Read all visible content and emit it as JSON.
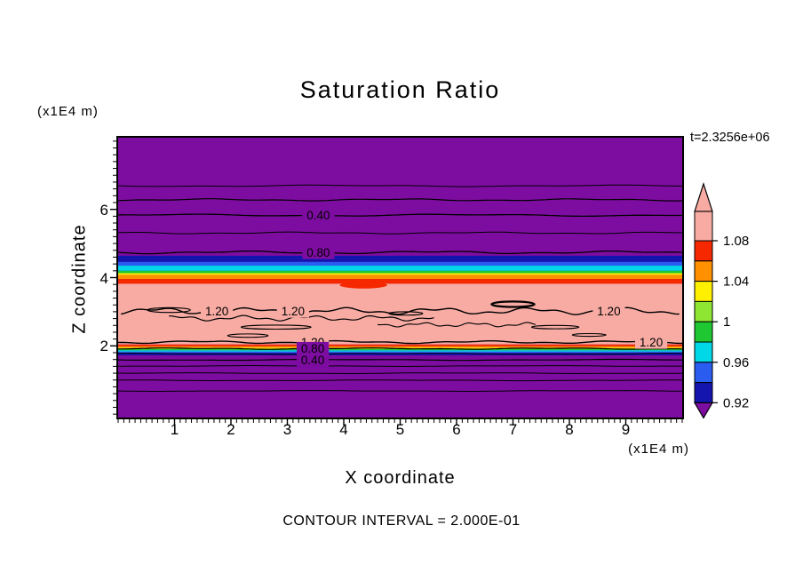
{
  "chart_data": {
    "type": "heatmap",
    "subtype": "filled contour plot",
    "title": "Saturation Ratio",
    "time_label": "t=2.3256e+06",
    "xlabel": "X coordinate",
    "ylabel": "Z coordinate",
    "x_unit": "(x1E4 m)",
    "y_unit": "(x1E4 m)",
    "contour_interval_label": "CONTOUR INTERVAL = 2.000E-01",
    "contour_interval": 0.2,
    "x_range": [
      0,
      10
    ],
    "z_range": [
      -0.1,
      8.1
    ],
    "x_major_ticks": [
      1,
      2,
      3,
      4,
      5,
      6,
      7,
      8,
      9
    ],
    "x_minor_step": 0.1,
    "y_major_ticks": [
      2,
      4,
      6
    ],
    "y_minor_step": 0.2,
    "grid": false,
    "colors": {
      "purple": "#7D0DA0",
      "darkblue": "#1414AF",
      "blue": "#2A5CEF",
      "cyan": "#00D8E8",
      "green": "#1FC832",
      "lightgreen": "#8FE632",
      "yellow": "#FFF000",
      "orange": "#FF9100",
      "red": "#F52800",
      "pink": "#F7ABA3"
    },
    "bands": [
      {
        "z_top": 8.1,
        "z_bottom": 4.64,
        "color": "purple"
      },
      {
        "z_top": 4.64,
        "z_bottom": 4.46,
        "color": "darkblue"
      },
      {
        "z_top": 4.46,
        "z_bottom": 4.35,
        "color": "blue"
      },
      {
        "z_top": 4.35,
        "z_bottom": 4.2,
        "color": "cyan"
      },
      {
        "z_top": 4.2,
        "z_bottom": 4.13,
        "color": "green"
      },
      {
        "z_top": 4.13,
        "z_bottom": 4.08,
        "color": "yellow"
      },
      {
        "z_top": 4.08,
        "z_bottom": 3.96,
        "color": "orange"
      },
      {
        "z_top": 3.96,
        "z_bottom": 3.82,
        "color": "red"
      },
      {
        "z_top": 3.82,
        "z_bottom": 2.04,
        "color": "pink"
      },
      {
        "z_top": 2.04,
        "z_bottom": 1.99,
        "color": "red"
      },
      {
        "z_top": 1.99,
        "z_bottom": 1.95,
        "color": "orange"
      },
      {
        "z_top": 1.95,
        "z_bottom": 1.91,
        "color": "yellow"
      },
      {
        "z_top": 1.91,
        "z_bottom": 1.87,
        "color": "green"
      },
      {
        "z_top": 1.87,
        "z_bottom": 1.83,
        "color": "cyan"
      },
      {
        "z_top": 1.83,
        "z_bottom": 1.79,
        "color": "blue"
      },
      {
        "z_top": 1.79,
        "z_bottom": 1.72,
        "color": "darkblue"
      },
      {
        "z_top": 1.72,
        "z_bottom": -0.1,
        "color": "purple"
      }
    ],
    "filled_blobs": [
      {
        "color": "red",
        "x": 4.35,
        "z": 3.78,
        "rx": 0.42,
        "rz": 0.1
      }
    ],
    "contour_lines": [
      {
        "z": 6.69,
        "x_from": 0,
        "x_to": 10,
        "amp": 0.6,
        "waves": 2,
        "width": 1,
        "labels": []
      },
      {
        "z": 6.28,
        "x_from": 0,
        "x_to": 10,
        "amp": 0.8,
        "waves": 3,
        "width": 1.2,
        "labels": []
      },
      {
        "z": 5.83,
        "x_from": 0,
        "x_to": 10,
        "amp": 0.8,
        "waves": 2,
        "width": 1.3,
        "labels": [
          {
            "text": "0.40",
            "x": 3.55,
            "bg": "purple"
          }
        ]
      },
      {
        "z": 5.31,
        "x_from": 0,
        "x_to": 10,
        "amp": 0.7,
        "waves": 3,
        "width": 1,
        "labels": []
      },
      {
        "z": 4.74,
        "x_from": 0,
        "x_to": 10,
        "amp": 1.0,
        "waves": 3,
        "width": 1.3,
        "labels": [
          {
            "text": "0.80",
            "x": 3.55,
            "bg": "purple"
          }
        ]
      },
      {
        "z": 3.02,
        "x_from": 0.05,
        "x_to": 9.95,
        "amp": 2.6,
        "waves": 6,
        "width": 1.4,
        "labels": [
          {
            "text": "1.20",
            "x": 1.75,
            "bg": "pink"
          },
          {
            "text": "1.20",
            "x": 3.1,
            "bg": "pink"
          },
          {
            "text": "1.20",
            "x": 8.7,
            "bg": "pink"
          }
        ]
      },
      {
        "z": 2.81,
        "x_from": 0.9,
        "x_to": 5.6,
        "amp": 2.0,
        "waves": 4,
        "width": 1.2,
        "labels": []
      },
      {
        "z": 2.62,
        "x_from": 4.6,
        "x_to": 7.4,
        "amp": 1.6,
        "waves": 3,
        "width": 1.1,
        "labels": []
      },
      {
        "z": 2.11,
        "x_from": 0,
        "x_to": 10,
        "amp": 1.0,
        "waves": 4,
        "width": 1.4,
        "labels": [
          {
            "text": "1.20",
            "x": 3.45,
            "bg": "pink"
          },
          {
            "text": "1.20",
            "x": 9.45,
            "bg": "pink"
          }
        ]
      },
      {
        "z": 1.92,
        "x_from": 0,
        "x_to": 10,
        "amp": 0.5,
        "waves": 3,
        "width": 1.2,
        "labels": [
          {
            "text": "0.80",
            "x": 3.45,
            "bg": "purple"
          }
        ]
      },
      {
        "z": 1.77,
        "x_from": 0,
        "x_to": 10,
        "amp": 0.4,
        "waves": 2,
        "width": 1,
        "labels": []
      },
      {
        "z": 1.59,
        "x_from": 0,
        "x_to": 10,
        "amp": 0.4,
        "waves": 2,
        "width": 1.2,
        "labels": [
          {
            "text": "0.40",
            "x": 3.45,
            "bg": "purple"
          }
        ]
      },
      {
        "z": 1.41,
        "x_from": 0,
        "x_to": 10,
        "amp": 0.3,
        "waves": 2,
        "width": 1,
        "labels": []
      },
      {
        "z": 1.2,
        "x_from": 0,
        "x_to": 10,
        "amp": 0.3,
        "waves": 2,
        "width": 1,
        "labels": []
      },
      {
        "z": 0.99,
        "x_from": 0,
        "x_to": 10,
        "amp": 0.3,
        "waves": 2,
        "width": 1,
        "labels": []
      },
      {
        "z": 0.68,
        "x_from": 0,
        "x_to": 10,
        "amp": 0.3,
        "waves": 2,
        "width": 1,
        "labels": []
      }
    ],
    "closed_contours": [
      {
        "x": 0.9,
        "z": 3.05,
        "rx": 0.38,
        "rz": 0.07
      },
      {
        "x": 2.8,
        "z": 2.55,
        "rx": 0.62,
        "rz": 0.06
      },
      {
        "x": 2.3,
        "z": 2.3,
        "rx": 0.36,
        "rz": 0.05
      },
      {
        "x": 5.1,
        "z": 2.95,
        "rx": 0.3,
        "rz": 0.05
      },
      {
        "x": 7.0,
        "z": 3.22,
        "rx": 0.38,
        "rz": 0.08,
        "width": 2.2
      },
      {
        "x": 7.75,
        "z": 2.55,
        "rx": 0.42,
        "rz": 0.05
      },
      {
        "x": 8.35,
        "z": 2.32,
        "rx": 0.3,
        "rz": 0.04
      }
    ],
    "colorbar": {
      "values_top_to_bottom": [
        "1.08",
        "1.04",
        "1",
        "0.96",
        "0.92"
      ],
      "segments": [
        {
          "color": "pink",
          "label": "1.08"
        },
        {
          "color": "red",
          "label": null
        },
        {
          "color": "orange",
          "label": "1.04"
        },
        {
          "color": "yellow",
          "label": null
        },
        {
          "color": "lightgreen",
          "label": "1"
        },
        {
          "color": "green",
          "label": null
        },
        {
          "color": "cyan",
          "label": "0.96"
        },
        {
          "color": "blue",
          "label": null
        },
        {
          "color": "darkblue",
          "label": "0.92"
        }
      ],
      "arrow_top_color": "pink",
      "arrow_bottom_color": "purple"
    }
  }
}
